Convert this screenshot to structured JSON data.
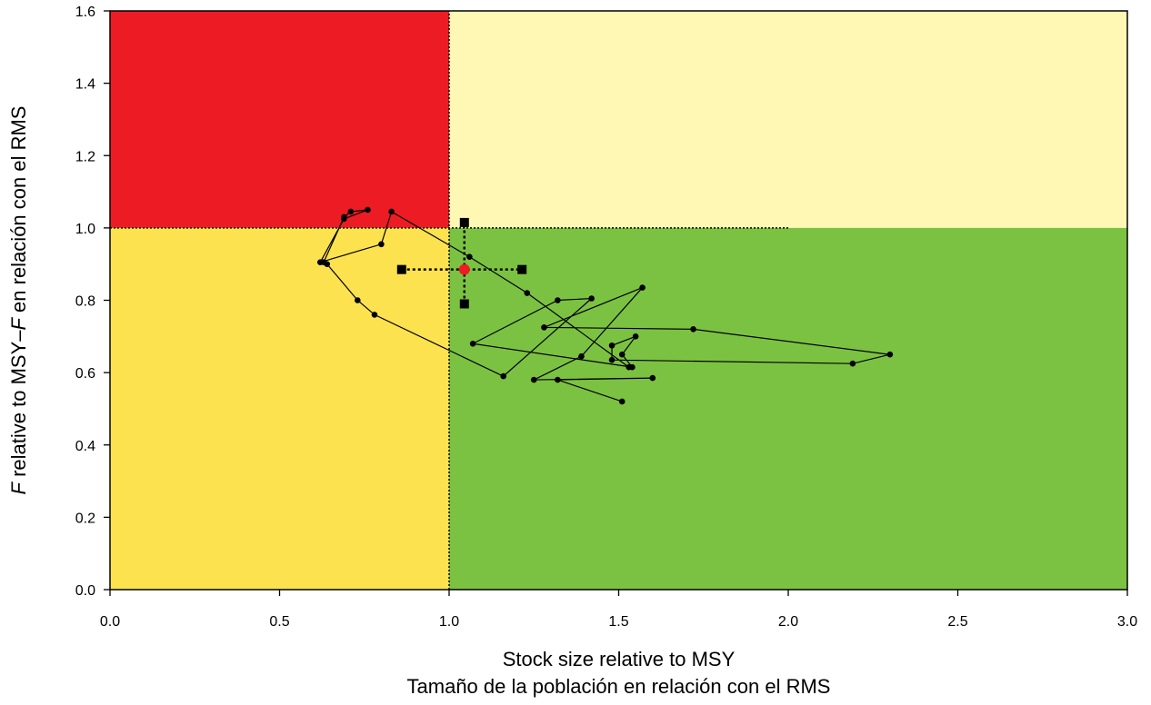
{
  "chart_data": {
    "type": "scatter",
    "title": "",
    "xlabel_lines": [
      "Stock size relative to MSY",
      "Tamaño de la población en relación con el RMS"
    ],
    "ylabel": {
      "parts": [
        {
          "text": "F",
          "italic": true
        },
        {
          "text": " relative to MSY–",
          "italic": false
        },
        {
          "text": "F",
          "italic": true
        },
        {
          "text": " en relación con el RMS",
          "italic": false
        }
      ]
    },
    "xlim": [
      0,
      3.0
    ],
    "ylim": [
      0,
      1.6
    ],
    "x_ticks": [
      0.0,
      0.5,
      1.0,
      1.5,
      2.0,
      2.5,
      3.0
    ],
    "x_tick_labels": [
      "0.0",
      "0.5",
      "1.0",
      "1.5",
      "2.0",
      "2.5",
      "3.0"
    ],
    "y_ticks": [
      0.0,
      0.2,
      0.4,
      0.6,
      0.8,
      1.0,
      1.2,
      1.4,
      1.6
    ],
    "y_tick_labels": [
      "0.0",
      "0.2",
      "0.4",
      "0.6",
      "0.8",
      "1.0",
      "1.2",
      "1.4",
      "1.6"
    ],
    "grid": false,
    "legend": "none",
    "reference_lines": {
      "x": 1.0,
      "y": 1.0,
      "y_line_xmax": 2.0
    },
    "quadrants": [
      {
        "name": "overfished-overfishing",
        "x": [
          0,
          1
        ],
        "y": [
          1,
          1.6
        ],
        "color": "#ed1c24"
      },
      {
        "name": "not-overfished-overfishing",
        "x": [
          1,
          3
        ],
        "y": [
          1,
          1.6
        ],
        "color": "#fff8b4"
      },
      {
        "name": "overfished-no-overfishing",
        "x": [
          0,
          1
        ],
        "y": [
          0,
          1
        ],
        "color": "#fde24f"
      },
      {
        "name": "not-overfished-no-overfishing",
        "x": [
          1,
          3
        ],
        "y": [
          0,
          1
        ],
        "color": "#7cc242"
      }
    ],
    "trajectory": {
      "points": [
        {
          "x": 1.51,
          "y": 0.52
        },
        {
          "x": 1.32,
          "y": 0.58
        },
        {
          "x": 1.6,
          "y": 0.585
        },
        {
          "x": 1.25,
          "y": 0.58
        },
        {
          "x": 1.39,
          "y": 0.645
        },
        {
          "x": 1.57,
          "y": 0.835
        },
        {
          "x": 1.28,
          "y": 0.725
        },
        {
          "x": 1.72,
          "y": 0.72
        },
        {
          "x": 2.3,
          "y": 0.65
        },
        {
          "x": 2.19,
          "y": 0.625
        },
        {
          "x": 1.48,
          "y": 0.635
        },
        {
          "x": 1.48,
          "y": 0.675
        },
        {
          "x": 1.55,
          "y": 0.7
        },
        {
          "x": 1.51,
          "y": 0.65
        },
        {
          "x": 1.54,
          "y": 0.615
        },
        {
          "x": 1.07,
          "y": 0.68
        },
        {
          "x": 1.32,
          "y": 0.8
        },
        {
          "x": 1.42,
          "y": 0.805
        },
        {
          "x": 1.16,
          "y": 0.59
        },
        {
          "x": 0.78,
          "y": 0.76
        },
        {
          "x": 0.73,
          "y": 0.8
        },
        {
          "x": 0.64,
          "y": 0.9
        },
        {
          "x": 0.63,
          "y": 0.905
        },
        {
          "x": 0.69,
          "y": 1.03
        },
        {
          "x": 0.71,
          "y": 1.045
        },
        {
          "x": 0.76,
          "y": 1.05
        },
        {
          "x": 0.69,
          "y": 1.025
        },
        {
          "x": 0.62,
          "y": 0.905
        },
        {
          "x": 0.8,
          "y": 0.955
        },
        {
          "x": 0.83,
          "y": 1.045
        },
        {
          "x": 1.06,
          "y": 0.92
        },
        {
          "x": 1.23,
          "y": 0.82
        },
        {
          "x": 1.53,
          "y": 0.615
        }
      ],
      "color": "#000000"
    },
    "current_estimate": {
      "x": 1.045,
      "y": 0.885,
      "color": "#ed1c24"
    },
    "confidence_interval": {
      "x_range": [
        0.86,
        1.215
      ],
      "y_range": [
        0.79,
        1.015
      ],
      "color": "#000000"
    }
  }
}
